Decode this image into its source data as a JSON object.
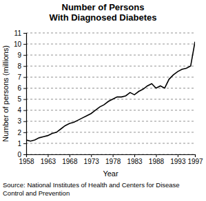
{
  "chart_data": {
    "type": "line",
    "title": "Number of Persons\nWith Diagnosed Diabetes",
    "x_label": "Year",
    "y_label": "Number of persons (millions)",
    "annotations": [
      "Source: National Institutes of Health and Centers for Disease",
      "Control and Prevention"
    ],
    "x": [
      1958,
      1959,
      1960,
      1961,
      1962,
      1963,
      1964,
      1965,
      1966,
      1967,
      1968,
      1969,
      1970,
      1971,
      1972,
      1973,
      1974,
      1975,
      1976,
      1977,
      1978,
      1979,
      1980,
      1981,
      1982,
      1983,
      1984,
      1985,
      1986,
      1987,
      1988,
      1989,
      1990,
      1991,
      1992,
      1993,
      1994,
      1995,
      1996,
      1997
    ],
    "values": [
      1.3,
      1.2,
      1.3,
      1.5,
      1.6,
      1.7,
      1.9,
      2.0,
      2.3,
      2.6,
      2.8,
      2.9,
      3.1,
      3.3,
      3.5,
      3.7,
      4.0,
      4.3,
      4.5,
      4.8,
      5.0,
      5.2,
      5.2,
      5.3,
      5.6,
      5.4,
      5.7,
      5.9,
      6.2,
      6.4,
      6.0,
      6.2,
      6.0,
      6.8,
      7.2,
      7.5,
      7.7,
      7.8,
      8.0,
      10.2
    ],
    "color": "#000000",
    "xlim": [
      1958,
      1997
    ],
    "xticks": [
      1958,
      1963,
      1968,
      1973,
      1978,
      1983,
      1988,
      1993,
      1997
    ],
    "ylim": [
      0,
      11
    ],
    "yticks": [
      0,
      1,
      2,
      3,
      4,
      5,
      6,
      7,
      8,
      9,
      10,
      11
    ],
    "grid": true
  }
}
